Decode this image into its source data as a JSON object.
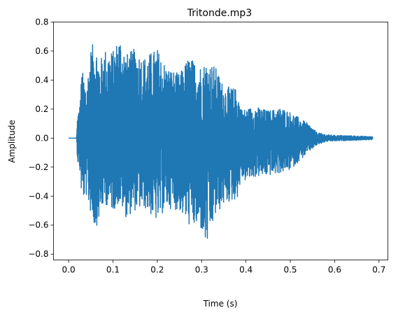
{
  "chart_data": {
    "type": "line",
    "title": "Tritonde.mp3",
    "xlabel": "Time (s)",
    "ylabel": "Amplitude",
    "xlim": [
      -0.034,
      0.72
    ],
    "ylim": [
      -0.84,
      0.8
    ],
    "xticks": [
      0.0,
      0.1,
      0.2,
      0.3,
      0.4,
      0.5,
      0.6,
      0.7
    ],
    "xtick_labels": [
      "0.0",
      "0.1",
      "0.2",
      "0.3",
      "0.4",
      "0.5",
      "0.6",
      "0.7"
    ],
    "yticks": [
      -0.8,
      -0.6,
      -0.4,
      -0.2,
      0.0,
      0.2,
      0.4,
      0.6,
      0.8
    ],
    "ytick_labels": [
      "−0.8",
      "−0.6",
      "−0.4",
      "−0.2",
      "0.0",
      "0.2",
      "0.4",
      "0.6",
      "0.8"
    ],
    "grid": false,
    "legend": false,
    "series": [
      {
        "color": "#1f77b4",
        "duration_s": 0.686,
        "envelope": {
          "t": [
            0.0,
            0.018,
            0.02,
            0.025,
            0.03,
            0.04,
            0.05,
            0.06,
            0.07,
            0.08,
            0.1,
            0.115,
            0.13,
            0.15,
            0.17,
            0.2,
            0.22,
            0.25,
            0.27,
            0.3,
            0.31,
            0.33,
            0.35,
            0.38,
            0.39,
            0.4,
            0.42,
            0.45,
            0.48,
            0.5,
            0.52,
            0.54,
            0.56,
            0.58,
            0.6,
            0.65,
            0.686
          ],
          "max": [
            0.0,
            0.0,
            0.16,
            0.22,
            0.48,
            0.35,
            0.62,
            0.68,
            0.52,
            0.62,
            0.6,
            0.72,
            0.58,
            0.62,
            0.56,
            0.62,
            0.5,
            0.44,
            0.56,
            0.5,
            0.53,
            0.5,
            0.36,
            0.34,
            0.2,
            0.2,
            0.22,
            0.19,
            0.21,
            0.18,
            0.14,
            0.1,
            0.04,
            0.025,
            0.02,
            0.015,
            0.01
          ],
          "min": [
            0.0,
            0.0,
            -0.16,
            -0.22,
            -0.43,
            -0.4,
            -0.52,
            -0.63,
            -0.55,
            -0.45,
            -0.5,
            -0.45,
            -0.55,
            -0.5,
            -0.48,
            -0.58,
            -0.48,
            -0.5,
            -0.6,
            -0.64,
            -0.77,
            -0.55,
            -0.46,
            -0.42,
            -0.28,
            -0.3,
            -0.27,
            -0.26,
            -0.24,
            -0.22,
            -0.16,
            -0.1,
            -0.05,
            -0.025,
            -0.02,
            -0.015,
            -0.01
          ]
        }
      }
    ]
  }
}
